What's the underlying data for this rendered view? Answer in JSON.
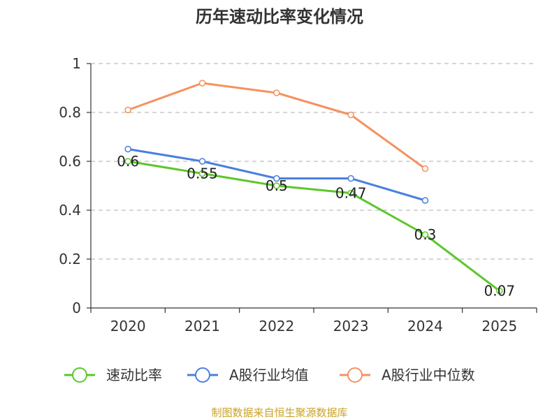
{
  "chart_data": {
    "type": "line",
    "title": "历年速动比率变化情况",
    "categories": [
      "2020",
      "2021",
      "2022",
      "2023",
      "2024",
      "2025"
    ],
    "ylim": [
      0,
      1
    ],
    "yticks": [
      "0",
      "0.2",
      "0.4",
      "0.6",
      "0.8",
      "1"
    ],
    "ytick_values": [
      0,
      0.2,
      0.4,
      0.6,
      0.8,
      1
    ],
    "grid": true,
    "legend_position": "bottom",
    "series": [
      {
        "name": "速动比率",
        "color": "#5cc72a",
        "values": [
          0.6,
          0.55,
          0.5,
          0.47,
          0.3,
          0.07
        ],
        "labels": [
          "0.6",
          "0.55",
          "0.5",
          "0.47",
          "0.3",
          "0.07"
        ]
      },
      {
        "name": "A股行业均值",
        "color": "#4a7fde",
        "values": [
          0.65,
          0.6,
          0.53,
          0.53,
          0.44,
          null
        ]
      },
      {
        "name": "A股行业中位数",
        "color": "#f59260",
        "values": [
          0.81,
          0.92,
          0.88,
          0.79,
          0.57,
          null
        ]
      }
    ],
    "source": "制图数据来自恒生聚源数据库"
  }
}
